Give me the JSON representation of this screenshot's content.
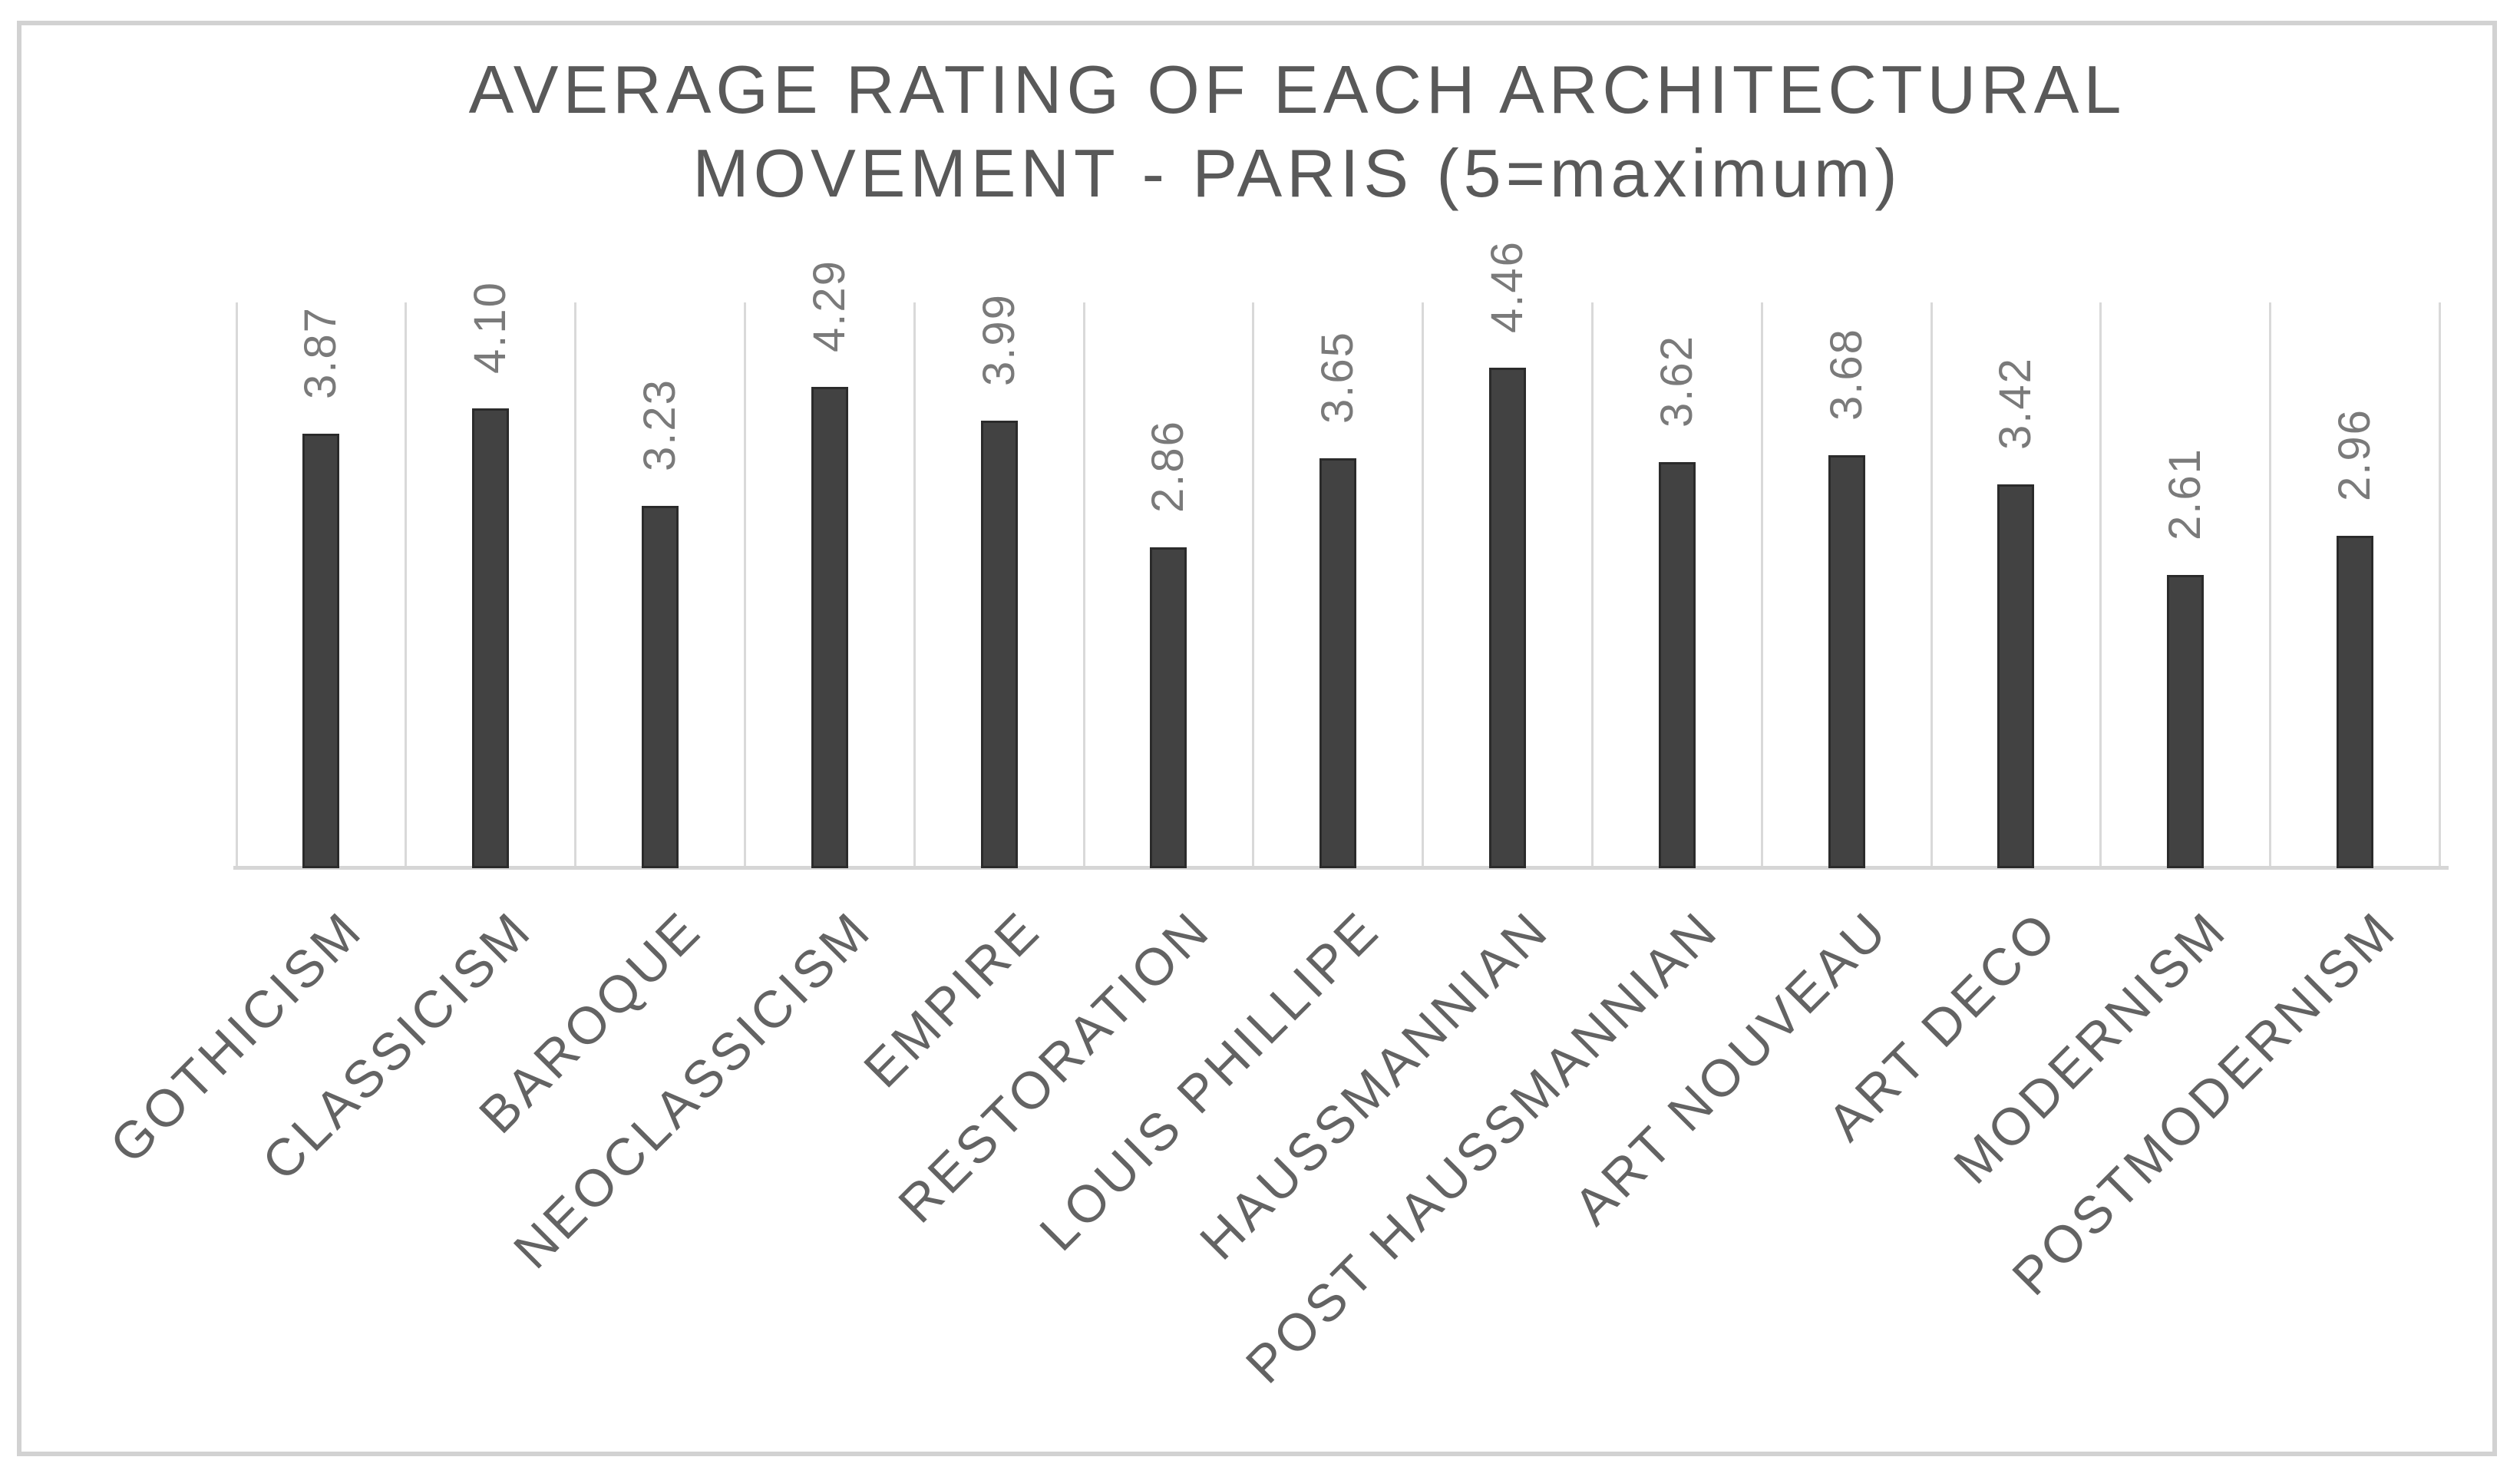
{
  "page": {
    "background_color": "#ffffff",
    "frame_border_color": "#d2d2d2"
  },
  "chart_data": {
    "type": "bar",
    "title": "AVERAGE RATING OF EACH ARCHITECTURAL MOVEMENT - PARIS (5=maximum)",
    "title_line1": "AVERAGE RATING OF EACH ARCHITECTURAL",
    "title_line2": "MOVEMENT - PARIS (5=maximum)",
    "categories": [
      "GOTHICISM",
      "CLASSICISM",
      "BAROQUE",
      "NEOCLASSICISM",
      "EMPIRE",
      "RESTORATION",
      "LOUIS PHILLIPE",
      "HAUSSMANNIAN",
      "POST HAUSSMANNIAN",
      "ART NOUVEAU",
      "ART DECO",
      "MODERNISM",
      "POSTMODERNISM"
    ],
    "values": [
      3.87,
      4.1,
      3.23,
      4.29,
      3.99,
      2.86,
      3.65,
      4.46,
      3.62,
      3.68,
      3.42,
      2.61,
      2.96
    ],
    "value_labels": [
      "3.87",
      "4.10",
      "3.23",
      "4.29",
      "3.99",
      "2.86",
      "3.65",
      "4.46",
      "3.62",
      "3.68",
      "3.42",
      "2.61",
      "2.96"
    ],
    "ylabel": "",
    "xlabel": "",
    "ylim": [
      0,
      5
    ],
    "legend": "none",
    "grid": "vertical category separator lines only",
    "bar_color": "#424242",
    "gridline_color": "#d9d9d9",
    "axis_line_color": "#d6d6d6",
    "title_color": "#595959",
    "value_label_color": "#7a7a7a",
    "category_label_color": "#636363"
  }
}
